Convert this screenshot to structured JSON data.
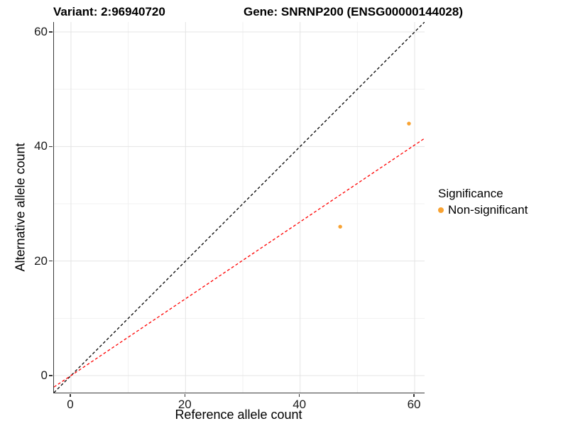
{
  "header": {
    "variant_title": "Variant: 2:96940720",
    "gene_title": "Gene: SNRNP200 (ENSG00000144028)"
  },
  "chart_data": {
    "type": "scatter",
    "xlabel": "Reference allele count",
    "ylabel": "Alternative allele count",
    "xlim": [
      -2.97,
      61.73
    ],
    "ylim": [
      -2.97,
      61.73
    ],
    "x_ticks": [
      0,
      20,
      40,
      60
    ],
    "y_ticks": [
      0,
      20,
      40,
      60
    ],
    "minor_ticks": [
      10,
      30,
      50
    ],
    "grid": true,
    "series": [
      {
        "name": "Non-significant",
        "color": "#F8A232",
        "points": [
          {
            "x": 59,
            "y": 44
          },
          {
            "x": 47,
            "y": 26
          }
        ]
      }
    ],
    "lines": [
      {
        "name": "identity-line",
        "slope": 1.0,
        "intercept": 0,
        "color": "#000000",
        "style": "dashed"
      },
      {
        "name": "fit-line",
        "slope": 0.671,
        "intercept": 0,
        "color": "#FF0000",
        "style": "dashed"
      }
    ],
    "legend": {
      "title": "Significance",
      "position": "right",
      "items": [
        {
          "label": "Non-significant",
          "color": "#F8A232"
        }
      ]
    },
    "style": {
      "grid_major_color": "#e4e4e4",
      "grid_minor_color": "#f1f1f1",
      "axis_color": "#333333",
      "panel_background": "#ffffff"
    }
  }
}
